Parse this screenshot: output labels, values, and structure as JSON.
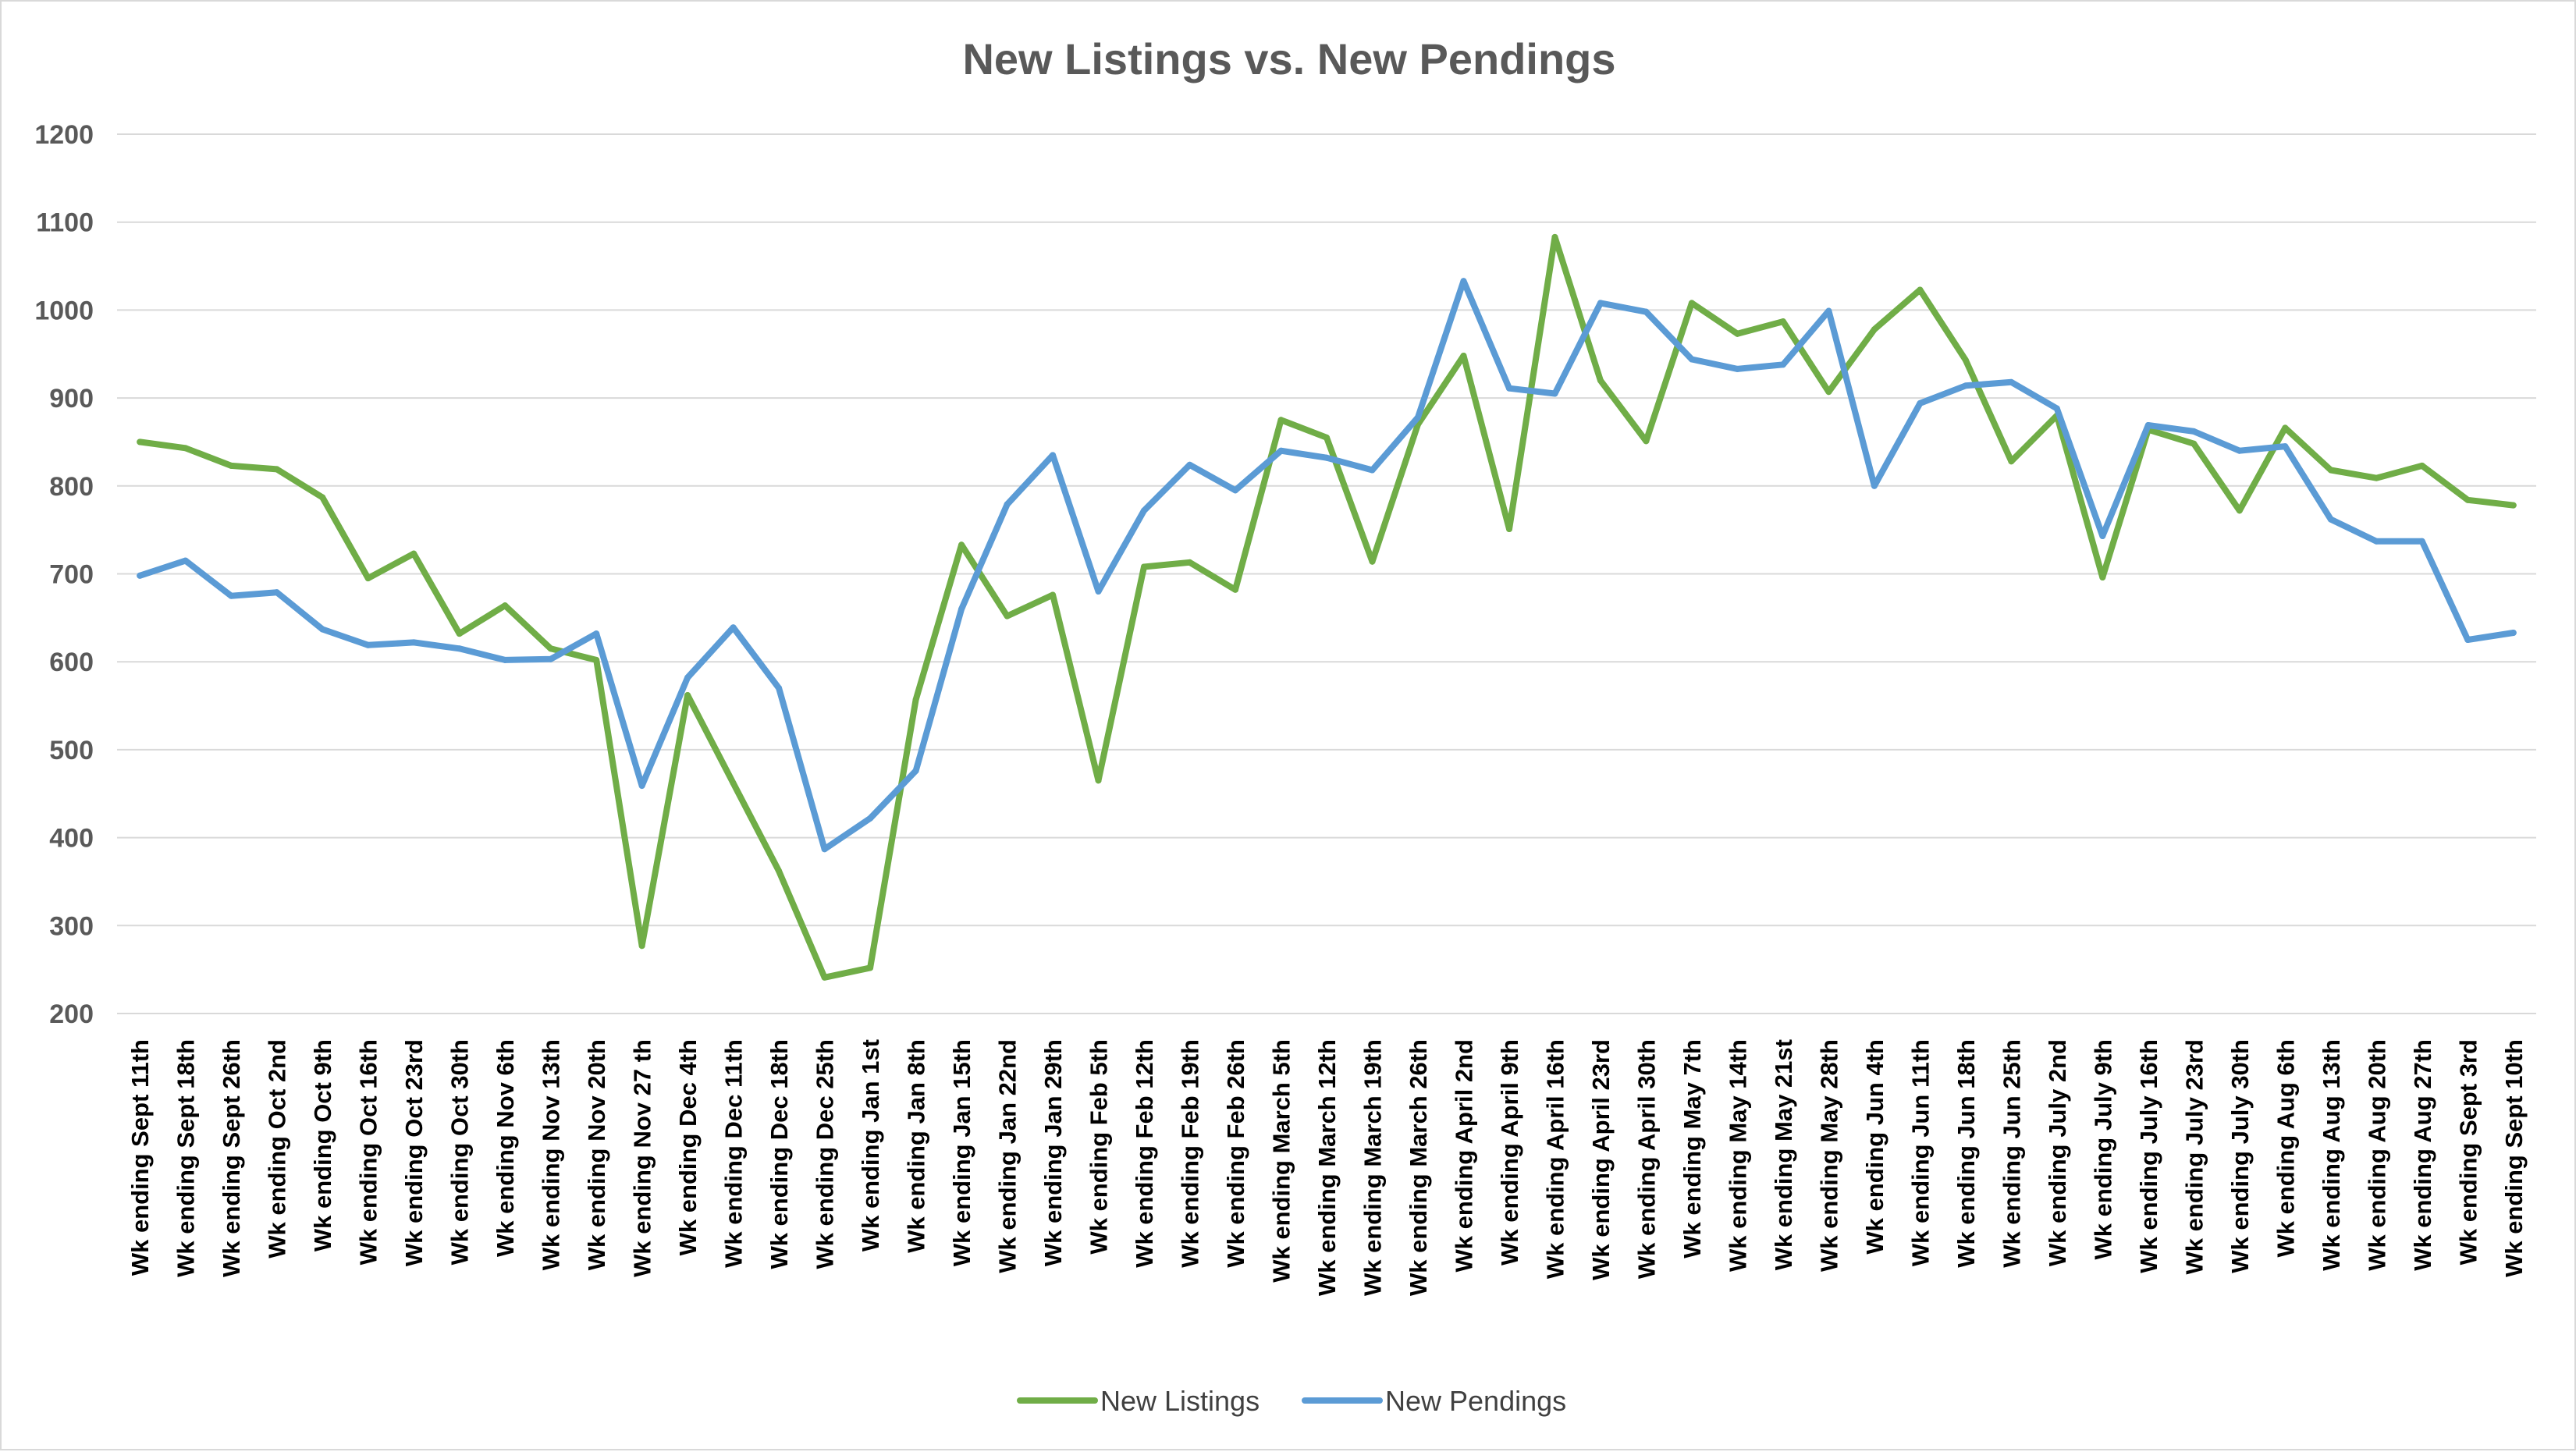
{
  "chart_data": {
    "type": "line",
    "title": "New Listings vs. New Pendings",
    "xlabel": "",
    "ylabel": "",
    "ylim": [
      200,
      1200
    ],
    "yticks": [
      200,
      300,
      400,
      500,
      600,
      700,
      800,
      900,
      1000,
      1100,
      1200
    ],
    "grid": true,
    "legend_position": "bottom",
    "categories": [
      "Wk ending Sept 11th",
      "Wk ending Sept 18th",
      "Wk ending Sept 26th",
      "Wk ending Oct 2nd",
      "Wk ending Oct 9th",
      "Wk ending Oct 16th",
      "Wk ending Oct 23rd",
      "Wk ending Oct 30th",
      "Wk ending Nov 6th",
      "Wk ending Nov 13th",
      "Wk ending Nov 20th",
      "Wk ending Nov 27 th",
      "Wk ending Dec 4th",
      "Wk ending Dec 11th",
      "Wk ending Dec 18th",
      "Wk ending Dec 25th",
      "Wk ending Jan 1st",
      "Wk ending Jan 8th",
      "Wk ending Jan 15th",
      "Wk ending Jan 22nd",
      "Wk ending Jan 29th",
      "Wk ending Feb 5th",
      "Wk ending Feb 12th",
      "Wk ending Feb 19th",
      "Wk ending Feb 26th",
      "Wk ending March 5th",
      "Wk ending March 12th",
      "Wk ending March 19th",
      "Wk ending March 26th",
      "Wk ending April 2nd",
      "Wk ending April 9th",
      "Wk ending April 16th",
      "Wk ending April 23rd",
      "Wk ending April 30th",
      "Wk ending May 7th",
      "Wk ending May 14th",
      "Wk ending May 21st",
      "Wk ending May 28th",
      "Wk ending Jun 4th",
      "Wk ending Jun 11th",
      "Wk ending Jun 18th",
      "Wk ending Jun 25th",
      "Wk ending July 2nd",
      "Wk ending July 9th",
      "Wk ending July 16th",
      "Wk ending July 23rd",
      "Wk ending July 30th",
      "Wk ending Aug 6th",
      "Wk ending Aug 13th",
      "Wk ending Aug 20th",
      "Wk ending Aug 27th",
      "Wk ending Sept 3rd",
      "Wk ending Sept 10th"
    ],
    "series": [
      {
        "name": "New Listings",
        "color": "#70ad47",
        "values": [
          850,
          843,
          823,
          819,
          787,
          695,
          723,
          632,
          664,
          615,
          602,
          277,
          562,
          462,
          362,
          241,
          252,
          557,
          733,
          652,
          676,
          465,
          708,
          713,
          682,
          875,
          855,
          714,
          870,
          948,
          751,
          1083,
          920,
          851,
          1008,
          973,
          987,
          907,
          978,
          1023,
          943,
          828,
          880,
          696,
          864,
          848,
          772,
          866,
          818,
          809,
          823,
          784,
          778
        ]
      },
      {
        "name": "New Pendings",
        "color": "#5b9bd5",
        "values": [
          698,
          715,
          675,
          679,
          637,
          619,
          622,
          615,
          602,
          603,
          632,
          459,
          582,
          639,
          570,
          387,
          422,
          476,
          660,
          779,
          835,
          680,
          772,
          824,
          795,
          840,
          832,
          818,
          878,
          1033,
          911,
          905,
          1008,
          998,
          944,
          933,
          938,
          999,
          800,
          894,
          914,
          918,
          888,
          743,
          869,
          862,
          840,
          845,
          762,
          737,
          737,
          625,
          633
        ]
      }
    ]
  }
}
